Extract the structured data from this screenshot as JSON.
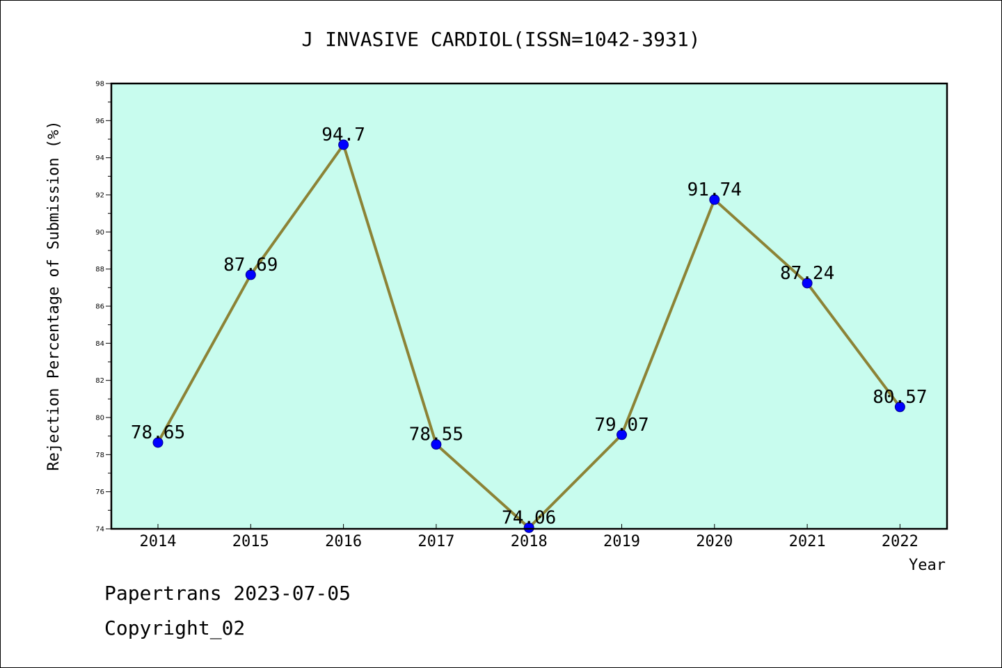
{
  "colors": {
    "plot_background": "#c8fcee",
    "line": "#8c8336",
    "marker_fill": "#0000ff",
    "marker_stroke": "#00008b",
    "axis": "#000000"
  },
  "chart_data": {
    "type": "line",
    "title": "J INVASIVE CARDIOL(ISSN=1042-3931)",
    "xlabel": "Year",
    "ylabel": "Rejection Percentage of Submission (%)",
    "ylim": [
      74,
      98
    ],
    "ytick_step": 2,
    "yminor_step": 1,
    "grid": false,
    "categories": [
      "2014",
      "2015",
      "2016",
      "2017",
      "2018",
      "2019",
      "2020",
      "2021",
      "2022"
    ],
    "series": [
      {
        "values": [
          78.65,
          87.69,
          94.7,
          78.55,
          74.06,
          79.07,
          91.74,
          87.24,
          80.57
        ],
        "labels": [
          "78.65",
          "87.69",
          "94.7",
          "78.55",
          "74.06",
          "79.07",
          "91.74",
          "87.24",
          "80.57"
        ]
      }
    ]
  },
  "footer": {
    "line1": "Papertrans 2023-07-05",
    "line2": "Copyright_02"
  }
}
